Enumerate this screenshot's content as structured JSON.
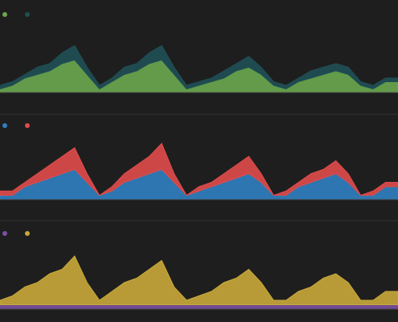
{
  "chart_data": [
    {
      "type": "stacked-area",
      "ylim": [
        0,
        20
      ],
      "series": [
        {
          "color": "#6aa84f",
          "values": [
            1,
            2,
            4,
            5,
            6,
            8,
            9,
            5,
            1,
            3,
            5,
            6,
            8,
            9,
            5,
            1,
            2,
            3,
            4,
            6,
            7,
            5,
            2,
            1,
            3,
            4,
            5,
            6,
            5,
            2,
            1,
            3,
            3
          ]
        },
        {
          "color": "#1f4f55",
          "values": [
            1,
            1,
            1,
            2,
            2,
            3,
            4,
            2,
            1,
            1,
            2,
            2,
            3,
            4,
            2,
            1,
            1,
            1,
            2,
            2,
            3,
            2,
            1,
            1,
            1,
            2,
            2,
            2,
            2,
            1,
            1,
            1,
            1
          ]
        }
      ]
    },
    {
      "type": "stacked-area",
      "ylim": [
        0,
        16
      ],
      "series": [
        {
          "color": "#2f7fc1",
          "values": [
            1,
            1,
            3,
            4,
            5,
            6,
            7,
            4,
            1,
            2,
            4,
            5,
            6,
            7,
            4,
            1,
            2,
            3,
            4,
            5,
            6,
            4,
            1,
            1,
            3,
            4,
            5,
            6,
            4,
            1,
            1,
            3,
            3
          ]
        },
        {
          "color": "#e04b4b",
          "values": [
            1,
            1,
            1,
            2,
            3,
            4,
            5,
            2,
            0,
            1,
            2,
            3,
            4,
            6,
            2,
            0,
            1,
            1,
            2,
            3,
            4,
            2,
            0,
            1,
            1,
            2,
            2,
            3,
            2,
            0,
            1,
            1,
            1
          ]
        }
      ]
    },
    {
      "type": "stacked-area",
      "ylim": [
        0,
        16
      ],
      "series": [
        {
          "color": "#7b4fa0",
          "values": [
            1,
            1,
            1,
            1,
            1,
            1,
            1,
            1,
            1,
            1,
            1,
            1,
            1,
            1,
            1,
            1,
            1,
            1,
            1,
            1,
            1,
            1,
            1,
            1,
            1,
            1,
            1,
            1,
            1,
            1,
            1,
            1,
            1
          ]
        },
        {
          "color": "#c9a83a",
          "values": [
            1,
            2,
            4,
            5,
            7,
            8,
            11,
            5,
            1,
            3,
            5,
            6,
            8,
            10,
            4,
            1,
            2,
            3,
            5,
            6,
            8,
            5,
            1,
            1,
            3,
            4,
            6,
            7,
            5,
            1,
            1,
            3,
            3
          ]
        }
      ]
    }
  ]
}
